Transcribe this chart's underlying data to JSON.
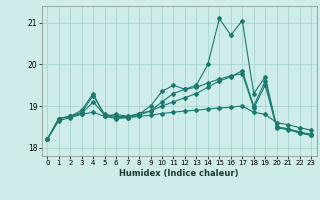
{
  "xlabel": "Humidex (Indice chaleur)",
  "background_color": "#ceecea",
  "grid_color": "#aad4d0",
  "line_color": "#1a7a6e",
  "xlim": [
    -0.5,
    23.5
  ],
  "ylim": [
    17.8,
    21.4
  ],
  "yticks": [
    18,
    19,
    20,
    21
  ],
  "xticks": [
    0,
    1,
    2,
    3,
    4,
    5,
    6,
    7,
    8,
    9,
    10,
    11,
    12,
    13,
    14,
    15,
    16,
    17,
    18,
    19,
    20,
    21,
    22,
    23
  ],
  "series": [
    [
      18.2,
      18.7,
      18.75,
      18.9,
      19.3,
      18.75,
      18.8,
      18.75,
      18.8,
      19.0,
      19.35,
      19.5,
      19.4,
      19.5,
      20.0,
      21.1,
      20.7,
      21.05,
      19.3,
      19.7,
      18.5,
      18.45,
      18.35,
      18.3
    ],
    [
      18.2,
      18.7,
      18.75,
      18.85,
      19.25,
      18.8,
      18.75,
      18.75,
      18.82,
      18.88,
      19.0,
      19.1,
      19.2,
      19.3,
      19.45,
      19.6,
      19.7,
      19.85,
      19.0,
      19.6,
      18.5,
      18.45,
      18.38,
      18.32
    ],
    [
      18.2,
      18.65,
      18.72,
      18.8,
      18.85,
      18.75,
      18.7,
      18.72,
      18.75,
      18.78,
      18.82,
      18.85,
      18.88,
      18.9,
      18.93,
      18.95,
      18.97,
      19.0,
      18.85,
      18.8,
      18.6,
      18.55,
      18.48,
      18.42
    ],
    [
      18.2,
      18.7,
      18.75,
      18.82,
      19.1,
      18.78,
      18.72,
      18.72,
      18.78,
      18.88,
      19.1,
      19.3,
      19.4,
      19.45,
      19.55,
      19.65,
      19.72,
      19.78,
      18.95,
      19.5,
      18.48,
      18.43,
      18.36,
      18.3
    ]
  ]
}
